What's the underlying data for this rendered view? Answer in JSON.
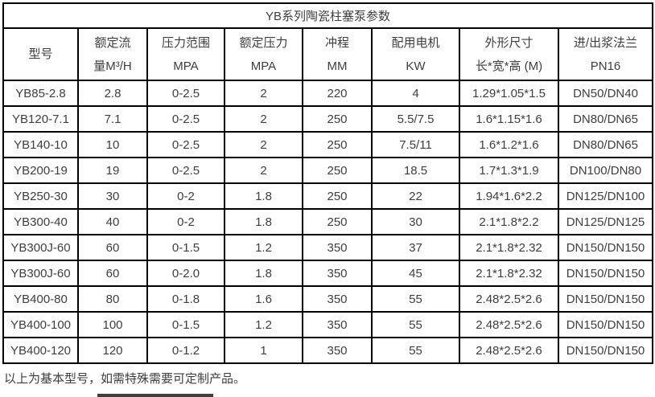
{
  "table": {
    "title": "YB系列陶瓷柱塞泵参数",
    "columns": [
      {
        "line1": "型号",
        "line2": ""
      },
      {
        "line1": "额定流",
        "line2": "量M³/H"
      },
      {
        "line1": "压力范围",
        "line2": "MPA"
      },
      {
        "line1": "额定压力",
        "line2": "MPA"
      },
      {
        "line1": "冲程",
        "line2": "MM"
      },
      {
        "line1": "配用电机",
        "line2": "KW"
      },
      {
        "line1": "外形尺寸",
        "line2": "长*宽*高 (M)"
      },
      {
        "line1": "进/出浆法兰",
        "line2": "PN16"
      }
    ],
    "rows": [
      [
        "YB85-2.8",
        "2.8",
        "0-2.5",
        "2",
        "220",
        "4",
        "1.29*1.05*1.5",
        "DN50/DN40"
      ],
      [
        "YB120-7.1",
        "7.1",
        "0-2.5",
        "2",
        "250",
        "5.5/7.5",
        "1.6*1.15*1.6",
        "DN80/DN65"
      ],
      [
        "YB140-10",
        "10",
        "0-2.5",
        "2",
        "250",
        "7.5/11",
        "1.6*1.2*1.6",
        "DN80/DN65"
      ],
      [
        "YB200-19",
        "19",
        "0-2.5",
        "2",
        "250",
        "18.5",
        "1.7*1.3*1.9",
        "DN100/DN80"
      ],
      [
        "YB250-30",
        "30",
        "0-2",
        "1.8",
        "250",
        "22",
        "1.94*1.6*2.2",
        "DN125/DN100"
      ],
      [
        "YB300-40",
        "40",
        "0-2",
        "1.8",
        "250",
        "30",
        "2.1*1.8*2.2",
        "DN125/DN125"
      ],
      [
        "YB300J-60",
        "60",
        "0-1.5",
        "1.2",
        "350",
        "37",
        "2.1*1.8*2.32",
        "DN150/DN150"
      ],
      [
        "YB300J-60",
        "60",
        "0-2.0",
        "1.8",
        "350",
        "45",
        "2.1*1.8*2.32",
        "DN150/DN150"
      ],
      [
        "YB400-80",
        "80",
        "0-1.8",
        "1.6",
        "350",
        "55",
        "2.48*2.5*2.6",
        "DN150/DN150"
      ],
      [
        "YB400-100",
        "100",
        "0-1.5",
        "1.2",
        "350",
        "55",
        "2.48*2.5*2.6",
        "DN150/DN150"
      ],
      [
        "YB400-120",
        "120",
        "0-1.2",
        "1",
        "350",
        "55",
        "2.48*2.5*2.6",
        "DN150/DN150"
      ]
    ]
  },
  "footer": {
    "note": "以上为基本型号，如需特殊需要可定制产品。"
  },
  "colors": {
    "border": "#000000",
    "text": "#3e3e3e",
    "clipped_bar": "#3f3f3f",
    "background": "#ffffff"
  }
}
